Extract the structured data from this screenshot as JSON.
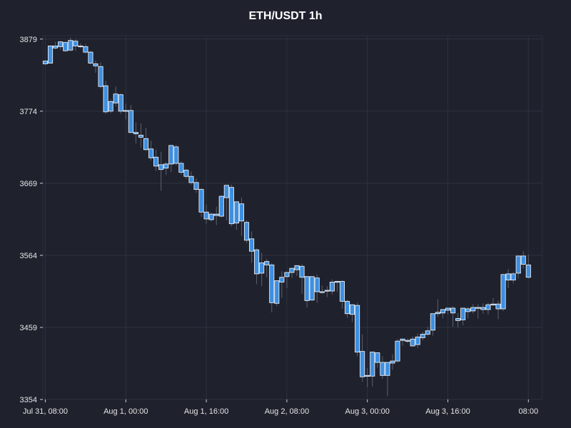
{
  "chart_data": {
    "type": "candlestick",
    "title": "ETH/USDT 1h",
    "interval": "1h",
    "first_open_time": "2024-07-31 08:00",
    "ylim": [
      3354,
      3884
    ],
    "y_ticks": [
      3354,
      3459,
      3564,
      3669,
      3774,
      3879
    ],
    "x_tick_labels": [
      "Jul 31, 08:00",
      "Aug 1, 00:00",
      "Aug 1, 16:00",
      "Aug 2, 08:00",
      "Aug 3, 00:00",
      "Aug 3, 16:00",
      "08:00"
    ],
    "x_tick_hours": [
      0,
      16,
      32,
      48,
      64,
      80,
      96
    ],
    "grid": true,
    "ohlc": [
      [
        3847,
        3848,
        3843,
        3841
      ],
      [
        3844,
        3870,
        3869,
        3844
      ],
      [
        3869,
        3875,
        3866,
        3864
      ],
      [
        3868,
        3876,
        3875,
        3863
      ],
      [
        3874,
        3876,
        3862,
        3860
      ],
      [
        3863,
        3881,
        3877,
        3861
      ],
      [
        3876,
        3879,
        3869,
        3862
      ],
      [
        3869,
        3873,
        3868,
        3866
      ],
      [
        3868,
        3872,
        3860,
        3858
      ],
      [
        3860,
        3862,
        3844,
        3842
      ],
      [
        3843,
        3848,
        3840,
        3830
      ],
      [
        3839,
        3845,
        3810,
        3807
      ],
      [
        3811,
        3818,
        3773,
        3770
      ],
      [
        3774,
        3792,
        3788,
        3771
      ],
      [
        3786,
        3810,
        3799,
        3781
      ],
      [
        3798,
        3800,
        3774,
        3770
      ],
      [
        3775,
        3785,
        3775,
        3762
      ],
      [
        3775,
        3783,
        3743,
        3742
      ],
      [
        3743,
        3758,
        3741,
        3727
      ],
      [
        3739,
        3756,
        3736,
        3721
      ],
      [
        3734,
        3750,
        3718,
        3716
      ],
      [
        3719,
        3731,
        3706,
        3702
      ],
      [
        3707,
        3718,
        3694,
        3687
      ],
      [
        3696,
        3715,
        3689,
        3658
      ],
      [
        3691,
        3700,
        3697,
        3681
      ],
      [
        3697,
        3725,
        3724,
        3685
      ],
      [
        3722,
        3725,
        3698,
        3695
      ],
      [
        3698,
        3701,
        3685,
        3681
      ],
      [
        3688,
        3690,
        3679,
        3675
      ],
      [
        3679,
        3686,
        3670,
        3667
      ],
      [
        3670,
        3676,
        3660,
        3655
      ],
      [
        3660,
        3662,
        3627,
        3620
      ],
      [
        3627,
        3638,
        3617,
        3610
      ],
      [
        3616,
        3626,
        3624,
        3613
      ],
      [
        3622,
        3635,
        3624,
        3608
      ],
      [
        3621,
        3652,
        3650,
        3619
      ],
      [
        3648,
        3662,
        3666,
        3615
      ],
      [
        3663,
        3667,
        3610,
        3606
      ],
      [
        3611,
        3636,
        3642,
        3601
      ],
      [
        3639,
        3648,
        3614,
        3592
      ],
      [
        3612,
        3615,
        3586,
        3582
      ],
      [
        3588,
        3599,
        3570,
        3553
      ],
      [
        3572,
        3574,
        3537,
        3522
      ],
      [
        3538,
        3568,
        3553,
        3519
      ],
      [
        3555,
        3559,
        3550,
        3532
      ],
      [
        3550,
        3553,
        3495,
        3481
      ],
      [
        3494,
        3499,
        3527,
        3490
      ],
      [
        3525,
        3541,
        3532,
        3502
      ],
      [
        3533,
        3537,
        3539,
        3516
      ],
      [
        3539,
        3546,
        3545,
        3531
      ],
      [
        3543,
        3549,
        3549,
        3534
      ],
      [
        3548,
        3551,
        3532,
        3508
      ],
      [
        3533,
        3534,
        3498,
        3488
      ],
      [
        3499,
        3527,
        3533,
        3497
      ],
      [
        3531,
        3536,
        3511,
        3495
      ],
      [
        3511,
        3520,
        3511,
        3508
      ],
      [
        3512,
        3519,
        3513,
        3503
      ],
      [
        3512,
        3529,
        3525,
        3507
      ],
      [
        3526,
        3527,
        3526,
        3511
      ],
      [
        3526,
        3528,
        3497,
        3486
      ],
      [
        3497,
        3499,
        3479,
        3473
      ],
      [
        3478,
        3490,
        3492,
        3467
      ],
      [
        3491,
        3495,
        3423,
        3417
      ],
      [
        3424,
        3449,
        3387,
        3380
      ],
      [
        3388,
        3400,
        3389,
        3372
      ],
      [
        3388,
        3415,
        3423,
        3373
      ],
      [
        3422,
        3414,
        3408,
        3400
      ],
      [
        3408,
        3417,
        3389,
        3384
      ],
      [
        3389,
        3399,
        3408,
        3359
      ],
      [
        3407,
        3420,
        3410,
        3397
      ],
      [
        3410,
        3442,
        3439,
        3408
      ],
      [
        3440,
        3442,
        3442,
        3432
      ],
      [
        3440,
        3443,
        3440,
        3436
      ],
      [
        3442,
        3446,
        3432,
        3431
      ],
      [
        3434,
        3450,
        3445,
        3429
      ],
      [
        3444,
        3453,
        3449,
        3440
      ],
      [
        3449,
        3460,
        3454,
        3446
      ],
      [
        3455,
        3479,
        3479,
        3447
      ],
      [
        3479,
        3500,
        3481,
        3474
      ],
      [
        3480,
        3485,
        3485,
        3472
      ],
      [
        3484,
        3488,
        3487,
        3478
      ],
      [
        3487,
        3490,
        3480,
        3460
      ],
      [
        3472,
        3480,
        3469,
        3459
      ],
      [
        3470,
        3479,
        3487,
        3462
      ],
      [
        3486,
        3489,
        3482,
        3472
      ],
      [
        3483,
        3493,
        3488,
        3479
      ],
      [
        3488,
        3493,
        3488,
        3472
      ],
      [
        3488,
        3494,
        3485,
        3479
      ],
      [
        3485,
        3495,
        3492,
        3478
      ],
      [
        3493,
        3502,
        3493,
        3490
      ],
      [
        3493,
        3498,
        3486,
        3471
      ],
      [
        3486,
        3505,
        3536,
        3483
      ],
      [
        3537,
        3544,
        3528,
        3516
      ],
      [
        3528,
        3540,
        3537,
        3523
      ],
      [
        3538,
        3556,
        3563,
        3530
      ],
      [
        3563,
        3570,
        3551,
        3545
      ],
      [
        3550,
        3565,
        3532,
        3530
      ]
    ]
  }
}
